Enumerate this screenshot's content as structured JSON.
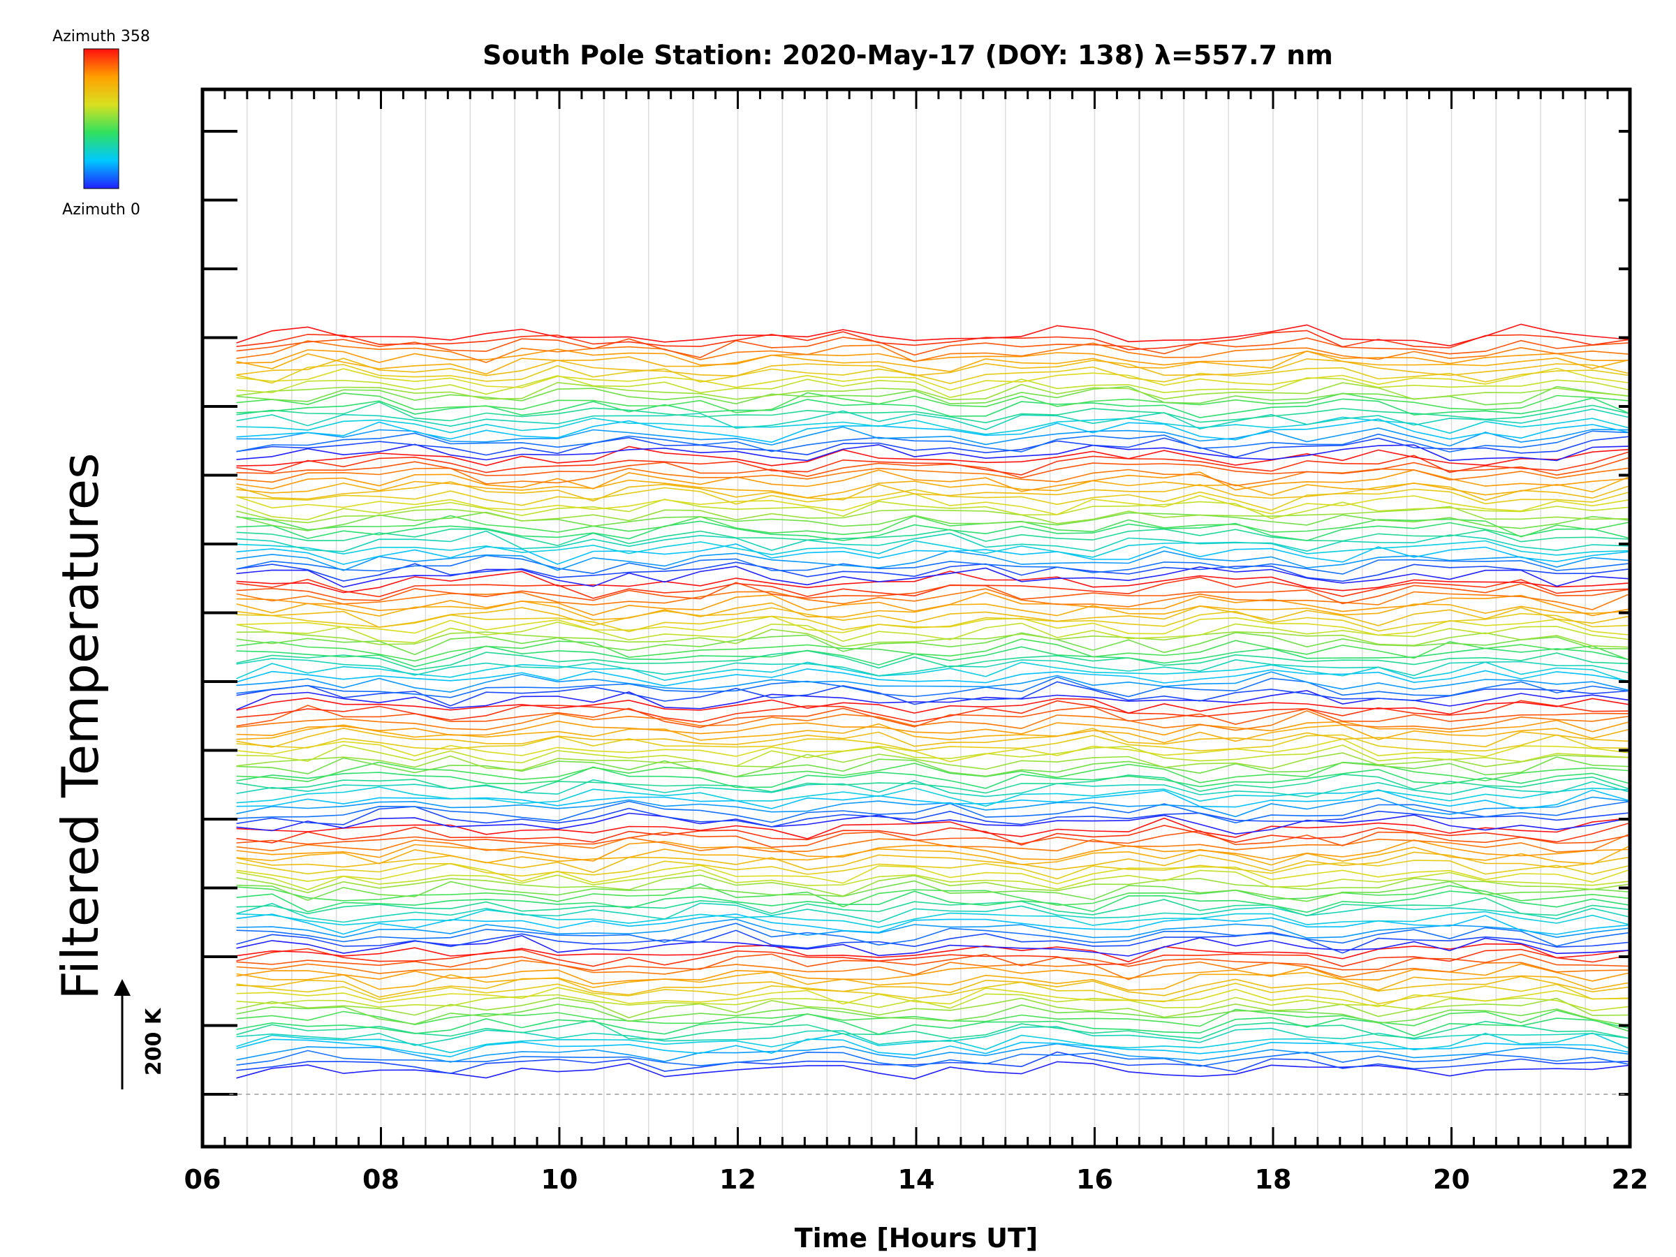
{
  "chart_data": {
    "type": "line",
    "title": "South Pole Station: 2020-May-17 (DOY: 138) λ=557.7 nm",
    "xlabel": "Time [Hours UT]",
    "ylabel": "Filtered Temperatures",
    "xlim": [
      6,
      22
    ],
    "x_ticks": [
      "06",
      "08",
      "10",
      "12",
      "14",
      "16",
      "18",
      "20",
      "22"
    ],
    "scale_bar_label": "200 K",
    "colorbar": {
      "top_label": "Azimuth 358",
      "bottom_label": "Azimuth 0",
      "colors": [
        "#2020ff",
        "#00c8ff",
        "#30e060",
        "#d8e020",
        "#ffa000",
        "#ff1010"
      ]
    },
    "grid": "vertical",
    "series_count": 132,
    "y_scale_per_series_K": 200
  }
}
